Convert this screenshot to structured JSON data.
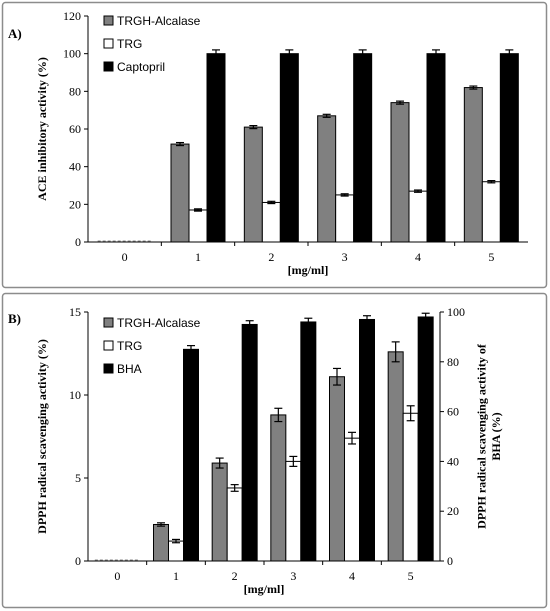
{
  "figure": {
    "panel_a_label": "A)",
    "panel_b_label": "B)"
  },
  "chart_data": [
    {
      "type": "bar",
      "panel": "A)",
      "categories": [
        "0",
        "1",
        "2",
        "3",
        "4",
        "5"
      ],
      "xlabel": "[mg/ml]",
      "ylabel": "ACE inhibitory activity (%)",
      "ylim": [
        0,
        120
      ],
      "yticks": [
        "0",
        "20",
        "40",
        "60",
        "80",
        "100",
        "120"
      ],
      "grid": false,
      "legend_position": "top-left",
      "series": [
        {
          "name": "TRGH-Alcalase",
          "color": "#808080",
          "values": [
            0,
            52,
            61,
            67,
            74,
            82
          ],
          "errors": [
            0,
            0.8,
            0.8,
            0.8,
            0.8,
            0.8
          ]
        },
        {
          "name": "TRG",
          "color": "#ffffff",
          "values": [
            0,
            17,
            21,
            25,
            27,
            32
          ],
          "errors": [
            0,
            0.6,
            0.6,
            0.6,
            0.6,
            0.6
          ]
        },
        {
          "name": "Captopril",
          "color": "#000000",
          "values": [
            0,
            100,
            100,
            100,
            100,
            100
          ],
          "errors": [
            0,
            2,
            2,
            2,
            2,
            2
          ]
        }
      ]
    },
    {
      "type": "bar",
      "panel": "B)",
      "categories": [
        "0",
        "1",
        "2",
        "3",
        "4",
        "5"
      ],
      "xlabel": "[mg/ml]",
      "ylabel": "DPPH radical scavenging activity (%)",
      "ylabel_right": "DPPH radical scavenging activity of BHA (%)",
      "ylim": [
        0,
        15
      ],
      "yticks": [
        "0",
        "5",
        "10",
        "15"
      ],
      "ylim_right": [
        0,
        100
      ],
      "yticks_right": [
        "0",
        "20",
        "40",
        "60",
        "80",
        "100"
      ],
      "grid": false,
      "legend_position": "top-left",
      "series": [
        {
          "name": "TRGH-Alcalase",
          "color": "#808080",
          "axis": "left",
          "values": [
            0,
            2.2,
            5.9,
            8.8,
            11.1,
            12.6
          ],
          "errors": [
            0,
            0.1,
            0.3,
            0.4,
            0.5,
            0.6
          ]
        },
        {
          "name": "TRG",
          "color": "#ffffff",
          "axis": "left",
          "values": [
            0,
            1.2,
            4.4,
            6.0,
            7.4,
            8.9
          ],
          "errors": [
            0,
            0.1,
            0.2,
            0.3,
            0.35,
            0.45
          ]
        },
        {
          "name": "BHA",
          "color": "#000000",
          "axis": "right",
          "values": [
            0,
            85,
            95,
            96,
            97,
            98
          ],
          "errors": [
            0,
            1.5,
            1.5,
            1.5,
            1.5,
            1.5
          ]
        }
      ]
    }
  ]
}
